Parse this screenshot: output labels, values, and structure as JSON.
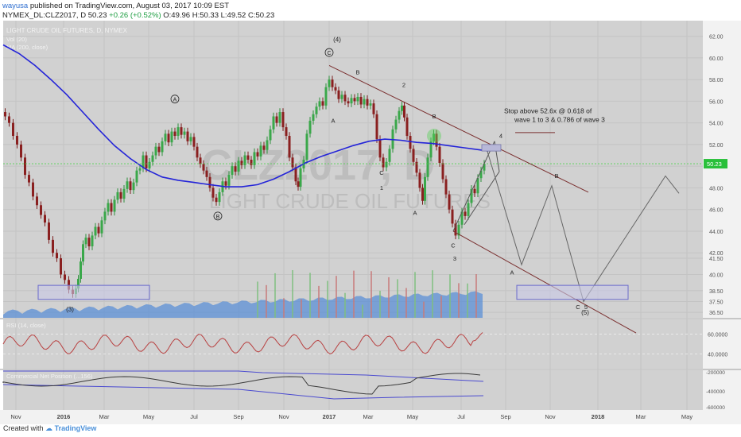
{
  "header": {
    "user": "wayusa",
    "published": "published on TradingView.com, August 03, 2017 10:09 EST",
    "symbol": "NYMEX_DL:CLZ2017, D",
    "last": "50.23",
    "change": "+0.26 (+0.52%)",
    "ohlc": "O:49.96 H:50.33 L:49.52 C:50.23"
  },
  "footer": {
    "created_with": "Created with",
    "brand": "TradingView"
  },
  "chart_data": [
    {
      "type": "line",
      "title": "LIGHT CRUDE OIL FUTURES, D, NYMEX",
      "watermark": {
        "symbol": "CLZ2017, D",
        "name": "LIGHT CRUDE OIL FUTURES"
      },
      "indicator_legends": [
        "Vol (20)",
        "MA (200, close)"
      ],
      "x_ticks": [
        "Nov",
        "2016",
        "Mar",
        "May",
        "Jul",
        "Sep",
        "Nov",
        "2017",
        "Mar",
        "May",
        "Jul",
        "Sep",
        "Nov",
        "2018",
        "Mar",
        "May"
      ],
      "y_ticks": [
        "62.00",
        "60.00",
        "58.00",
        "56.00",
        "54.00",
        "52.00",
        "50.00",
        "48.00",
        "46.00",
        "44.00",
        "42.00",
        "41.50",
        "40.00",
        "38.50",
        "37.50",
        "36.50"
      ],
      "ylim": [
        36,
        63
      ],
      "last_price": "50.23",
      "price_path": [
        [
          0,
          55.0
        ],
        [
          5,
          54.6
        ],
        [
          10,
          54.0
        ],
        [
          15,
          52.8
        ],
        [
          20,
          52.0
        ],
        [
          25,
          50.8
        ],
        [
          30,
          49.2
        ],
        [
          35,
          48.5
        ],
        [
          40,
          47.2
        ],
        [
          45,
          46.4
        ],
        [
          50,
          45.5
        ],
        [
          55,
          44.8
        ],
        [
          60,
          43.2
        ],
        [
          65,
          42.0
        ],
        [
          70,
          41.5
        ],
        [
          75,
          40.0
        ],
        [
          80,
          39.5
        ],
        [
          85,
          38.6
        ],
        [
          90,
          38.2
        ],
        [
          93,
          38.7
        ],
        [
          96,
          39.6
        ],
        [
          99,
          41.2
        ],
        [
          102,
          42.8
        ],
        [
          106,
          43.4
        ],
        [
          110,
          42.6
        ],
        [
          114,
          43.6
        ],
        [
          118,
          44.4
        ],
        [
          122,
          43.8
        ],
        [
          126,
          45.0
        ],
        [
          130,
          45.8
        ],
        [
          134,
          46.6
        ],
        [
          138,
          45.8
        ],
        [
          142,
          46.9
        ],
        [
          146,
          47.6
        ],
        [
          150,
          47.0
        ],
        [
          154,
          47.9
        ],
        [
          158,
          48.6
        ],
        [
          162,
          47.8
        ],
        [
          166,
          48.5
        ],
        [
          170,
          49.6
        ],
        [
          174,
          49.8
        ],
        [
          178,
          51.0
        ],
        [
          182,
          49.8
        ],
        [
          186,
          50.4
        ],
        [
          190,
          51.0
        ],
        [
          194,
          51.8
        ],
        [
          198,
          51.3
        ],
        [
          202,
          52.3
        ],
        [
          206,
          53.0
        ],
        [
          210,
          52.2
        ],
        [
          214,
          53.2
        ],
        [
          218,
          52.8
        ],
        [
          222,
          53.6
        ],
        [
          226,
          52.9
        ],
        [
          230,
          53.2
        ],
        [
          234,
          52.3
        ],
        [
          238,
          52.7
        ],
        [
          242,
          51.8
        ],
        [
          246,
          50.8
        ],
        [
          250,
          50.2
        ],
        [
          254,
          49.6
        ],
        [
          258,
          49.0
        ],
        [
          262,
          48.0
        ],
        [
          266,
          47.1
        ],
        [
          270,
          46.7
        ],
        [
          274,
          47.6
        ],
        [
          278,
          48.6
        ],
        [
          282,
          48.2
        ],
        [
          286,
          49.2
        ],
        [
          290,
          50.0
        ],
        [
          294,
          49.5
        ],
        [
          298,
          50.5
        ],
        [
          302,
          50.1
        ],
        [
          306,
          51.0
        ],
        [
          310,
          50.6
        ],
        [
          314,
          50.1
        ],
        [
          318,
          51.3
        ],
        [
          322,
          50.9
        ],
        [
          326,
          51.9
        ],
        [
          330,
          51.5
        ],
        [
          334,
          52.4
        ],
        [
          338,
          53.4
        ],
        [
          342,
          54.6
        ],
        [
          346,
          54.0
        ],
        [
          350,
          55.0
        ],
        [
          354,
          53.6
        ],
        [
          358,
          52.8
        ],
        [
          362,
          50.8
        ],
        [
          366,
          49.9
        ],
        [
          370,
          48.6
        ],
        [
          372,
          48.1
        ],
        [
          376,
          49.8
        ],
        [
          380,
          50.6
        ],
        [
          384,
          53.0
        ],
        [
          388,
          54.2
        ],
        [
          392,
          54.8
        ],
        [
          396,
          55.5
        ],
        [
          400,
          56.0
        ],
        [
          404,
          55.6
        ],
        [
          408,
          57.3
        ],
        [
          412,
          58.0
        ],
        [
          416,
          57.3
        ],
        [
          420,
          57.0
        ],
        [
          424,
          56.2
        ],
        [
          428,
          56.6
        ],
        [
          432,
          56.0
        ],
        [
          436,
          55.8
        ],
        [
          440,
          56.3
        ],
        [
          444,
          56.0
        ],
        [
          448,
          56.4
        ],
        [
          452,
          55.7
        ],
        [
          456,
          56.2
        ],
        [
          460,
          55.6
        ],
        [
          464,
          55.8
        ],
        [
          468,
          54.8
        ],
        [
          472,
          52.5
        ],
        [
          476,
          50.8
        ],
        [
          480,
          49.9
        ],
        [
          484,
          50.4
        ],
        [
          488,
          51.6
        ],
        [
          492,
          53.4
        ],
        [
          496,
          54.3
        ],
        [
          500,
          55.1
        ],
        [
          503,
          55.6
        ],
        [
          506,
          54.5
        ],
        [
          510,
          52.8
        ],
        [
          514,
          51.6
        ],
        [
          518,
          50.4
        ],
        [
          522,
          49.4
        ],
        [
          526,
          48.0
        ],
        [
          529,
          46.8
        ],
        [
          532,
          49.0
        ],
        [
          536,
          50.8
        ],
        [
          540,
          52.3
        ],
        [
          543,
          53.0
        ],
        [
          547,
          51.8
        ],
        [
          551,
          50.3
        ],
        [
          555,
          48.8
        ],
        [
          559,
          47.4
        ],
        [
          563,
          46.0
        ],
        [
          567,
          44.7
        ],
        [
          571,
          43.6
        ],
        [
          575,
          44.6
        ],
        [
          579,
          45.8
        ],
        [
          583,
          45.4
        ],
        [
          587,
          46.6
        ],
        [
          591,
          47.9
        ],
        [
          595,
          47.5
        ],
        [
          599,
          48.9
        ],
        [
          603,
          49.6
        ],
        [
          607,
          50.23
        ]
      ],
      "ma200_path": [
        [
          0,
          61.2
        ],
        [
          20,
          60.4
        ],
        [
          40,
          59.3
        ],
        [
          60,
          58.0
        ],
        [
          80,
          56.6
        ],
        [
          100,
          55.0
        ],
        [
          120,
          53.4
        ],
        [
          140,
          51.9
        ],
        [
          160,
          50.7
        ],
        [
          180,
          49.7
        ],
        [
          200,
          49.0
        ],
        [
          220,
          48.7
        ],
        [
          240,
          48.5
        ],
        [
          260,
          48.3
        ],
        [
          280,
          48.1
        ],
        [
          300,
          48.1
        ],
        [
          320,
          48.3
        ],
        [
          340,
          48.8
        ],
        [
          360,
          49.5
        ],
        [
          380,
          50.3
        ],
        [
          400,
          50.9
        ],
        [
          420,
          51.4
        ],
        [
          440,
          51.9
        ],
        [
          460,
          52.3
        ],
        [
          480,
          52.5
        ],
        [
          500,
          52.4
        ],
        [
          520,
          52.2
        ],
        [
          540,
          52.1
        ],
        [
          560,
          51.9
        ],
        [
          580,
          51.7
        ],
        [
          600,
          51.5
        ],
        [
          610,
          51.4
        ]
      ],
      "rsi_panel": {
        "label": "RSI (14, close)",
        "ticks": [
          "60.0000",
          "40.0000"
        ]
      },
      "cnp_panel": {
        "label": "Commercial Net Position (...156)",
        "ticks": [
          "-200000",
          "-400000",
          "-600000"
        ]
      },
      "annotations": {
        "wave_top": "(4)",
        "wave_bottom": "(3)",
        "wave_five": "(5)",
        "circle_a": "A",
        "circle_b": "B",
        "circle_c": "C",
        "plain_labels": [
          "B",
          "A",
          "2",
          "C",
          "1",
          "A",
          "B",
          "C",
          "3",
          "4",
          "B",
          "A",
          "C",
          "5"
        ],
        "note_line1": "Stop above 52.6x  @ 0.618 of",
        "note_line2": "wave 1 to 3 & 0.786 of wave 3"
      }
    }
  ]
}
